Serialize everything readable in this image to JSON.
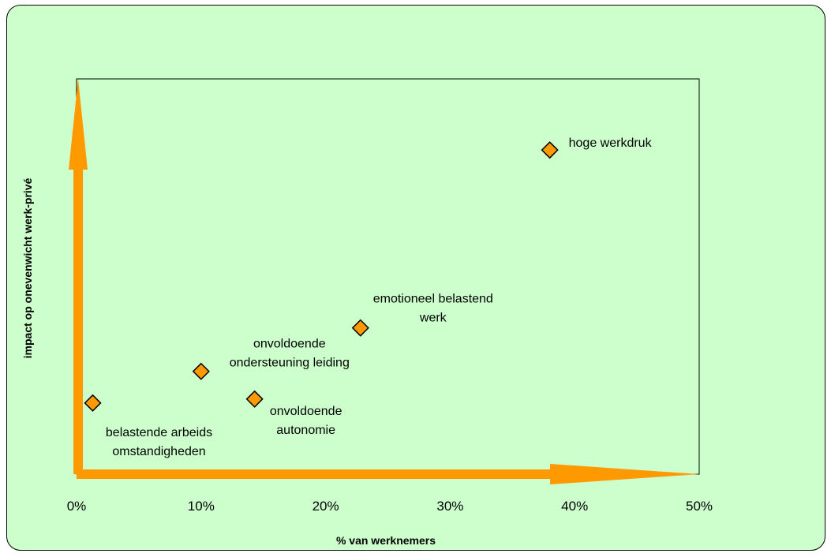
{
  "chart_data": {
    "type": "scatter",
    "title": "",
    "xlabel": "% van werknemers",
    "ylabel": "impact op onevenwicht werk-privé",
    "xlim": [
      0,
      50
    ],
    "ylim": [
      0,
      1
    ],
    "x_ticks": [
      "0%",
      "10%",
      "20%",
      "30%",
      "40%",
      "50%"
    ],
    "grid": false,
    "colors": {
      "marker_fill": "#FF9900",
      "arrow": "#FF9900",
      "background": "#CCFFCC"
    },
    "points": [
      {
        "x": 1.3,
        "y": 0.18,
        "label_lines": [
          "belastende arbeids",
          "omstandigheden"
        ]
      },
      {
        "x": 10.0,
        "y": 0.26,
        "label_lines": [
          "onvoldoende",
          "ondersteuning leiding"
        ]
      },
      {
        "x": 14.3,
        "y": 0.19,
        "label_lines": [
          "onvoldoende",
          "autonomie"
        ]
      },
      {
        "x": 22.8,
        "y": 0.37,
        "label_lines": [
          "emotioneel belastend",
          "werk"
        ]
      },
      {
        "x": 38.0,
        "y": 0.82,
        "label_lines": [
          "hoge werkdruk"
        ]
      }
    ]
  }
}
